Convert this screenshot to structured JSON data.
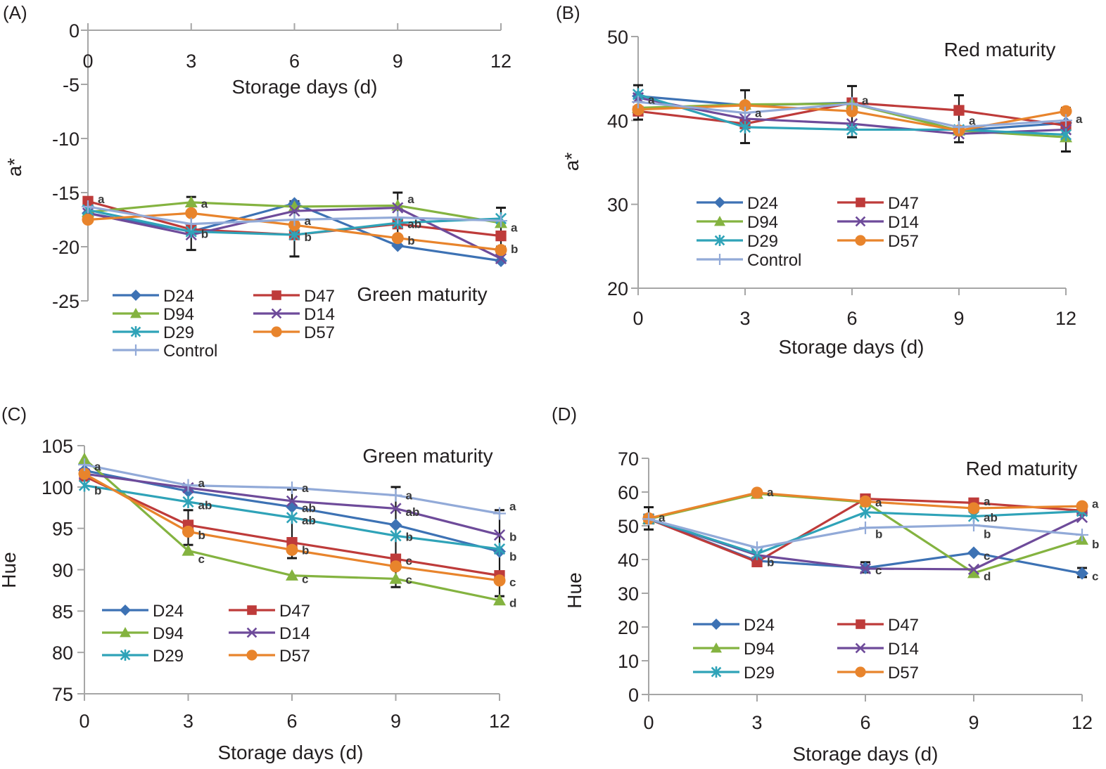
{
  "colors": {
    "D24": "#3d72b4",
    "D47": "#be3b3a",
    "D94": "#84b340",
    "D14": "#6e4b9a",
    "D29": "#2fa3b8",
    "D57": "#e8842c",
    "Control": "#92aad8",
    "axis": "#a6a6a6",
    "errorbar": "#1a1a1a"
  },
  "chart_data": [
    {
      "panel": "(A)",
      "type": "line",
      "annotation": "Green maturity",
      "xlabel": "Storage days (d)",
      "ylabel": "a*",
      "x": [
        0,
        3,
        6,
        9,
        12
      ],
      "xticks": [
        "0",
        "3",
        "6",
        "9",
        "12"
      ],
      "yticks": [
        "0",
        "-5",
        "-10",
        "-15",
        "-20",
        "-25"
      ],
      "ylim": [
        -25,
        0
      ],
      "x_axis_position": "top",
      "legend_position": "bottom-left",
      "series": [
        {
          "name": "D24",
          "marker": "diamond",
          "values": [
            -16.9,
            -18.6,
            -16.0,
            -19.9,
            -21.3
          ]
        },
        {
          "name": "D47",
          "marker": "square",
          "values": [
            -15.8,
            -18.4,
            -18.9,
            -17.9,
            -19.0
          ]
        },
        {
          "name": "D94",
          "marker": "triangle",
          "values": [
            -16.8,
            -15.9,
            -16.3,
            -16.2,
            -17.8
          ]
        },
        {
          "name": "D14",
          "marker": "x",
          "values": [
            -16.9,
            -18.9,
            -16.7,
            -16.4,
            -21.1
          ]
        },
        {
          "name": "D29",
          "marker": "asterisk",
          "values": [
            -16.6,
            -18.6,
            -18.9,
            -17.8,
            -17.4
          ]
        },
        {
          "name": "D57",
          "marker": "circle",
          "values": [
            -17.5,
            -16.9,
            -18.0,
            -19.2,
            -20.3
          ]
        },
        {
          "name": "Control",
          "marker": "plus",
          "values": [
            -16.3,
            -17.9,
            -17.5,
            -17.3,
            -17.6
          ]
        }
      ],
      "error_bars": [
        {
          "x": 3,
          "low": -20.3,
          "high": -15.4
        },
        {
          "x": 6,
          "low": -20.9,
          "high": -15.8
        },
        {
          "x": 9,
          "low": -19.0,
          "high": -15.0
        },
        {
          "x": 12,
          "low": -20.0,
          "high": -16.4
        }
      ],
      "significance_labels": [
        {
          "x": 0,
          "y": -15.6,
          "text": "a"
        },
        {
          "x": 3,
          "y": -16.0,
          "text": "a"
        },
        {
          "x": 3,
          "y": -18.8,
          "text": "b"
        },
        {
          "x": 6,
          "y": -17.6,
          "text": "a"
        },
        {
          "x": 6,
          "y": -19.1,
          "text": "b"
        },
        {
          "x": 9,
          "y": -15.6,
          "text": "a"
        },
        {
          "x": 9,
          "y": -17.9,
          "text": "ab"
        },
        {
          "x": 9,
          "y": -19.4,
          "text": "b"
        },
        {
          "x": 12,
          "y": -18.2,
          "text": "a"
        },
        {
          "x": 12,
          "y": -20.2,
          "text": "b"
        }
      ]
    },
    {
      "panel": "(B)",
      "type": "line",
      "annotation": "Red maturity",
      "xlabel": "Storage days (d)",
      "ylabel": "a*",
      "x": [
        0,
        3,
        6,
        9,
        12
      ],
      "xticks": [
        "0",
        "3",
        "6",
        "9",
        "12"
      ],
      "yticks": [
        "20",
        "30",
        "40",
        "50"
      ],
      "ylim": [
        20,
        50
      ],
      "x_axis_position": "bottom",
      "legend_position": "bottom-left",
      "series": [
        {
          "name": "D24",
          "marker": "diamond",
          "values": [
            42.9,
            41.8,
            42.1,
            38.8,
            39.7
          ]
        },
        {
          "name": "D47",
          "marker": "square",
          "values": [
            41.1,
            39.6,
            42.1,
            41.2,
            39.4
          ]
        },
        {
          "name": "D94",
          "marker": "triangle",
          "values": [
            41.5,
            41.9,
            42.0,
            38.8,
            38.0
          ]
        },
        {
          "name": "D14",
          "marker": "x",
          "values": [
            42.7,
            40.2,
            39.6,
            38.4,
            38.9
          ]
        },
        {
          "name": "D29",
          "marker": "asterisk",
          "values": [
            43.1,
            39.2,
            38.9,
            38.9,
            38.3
          ]
        },
        {
          "name": "D57",
          "marker": "circle",
          "values": [
            41.3,
            41.8,
            41.1,
            38.8,
            41.1
          ]
        },
        {
          "name": "Control",
          "marker": "plus",
          "values": [
            42.2,
            40.9,
            42.0,
            39.2,
            40.0
          ]
        }
      ],
      "error_bars": [
        {
          "x": 0,
          "low": 40.1,
          "high": 44.2
        },
        {
          "x": 3,
          "low": 37.3,
          "high": 43.6
        },
        {
          "x": 6,
          "low": 38.0,
          "high": 44.1
        },
        {
          "x": 9,
          "low": 37.4,
          "high": 43.0
        },
        {
          "x": 12,
          "low": 36.3,
          "high": 41.5
        }
      ],
      "significance_labels": [
        {
          "x": 0,
          "y": 42.5,
          "text": "a"
        },
        {
          "x": 3,
          "y": 40.9,
          "text": "a"
        },
        {
          "x": 6,
          "y": 42.4,
          "text": "a"
        },
        {
          "x": 9,
          "y": 40.0,
          "text": "a"
        },
        {
          "x": 12,
          "y": 40.2,
          "text": "a"
        }
      ]
    },
    {
      "panel": "(C)",
      "type": "line",
      "annotation": "Green maturity",
      "xlabel": "Storage days (d)",
      "ylabel": "Hue",
      "x": [
        0,
        3,
        6,
        9,
        12
      ],
      "xticks": [
        "0",
        "3",
        "6",
        "9",
        "12"
      ],
      "yticks": [
        "75",
        "80",
        "85",
        "90",
        "95",
        "100",
        "105"
      ],
      "ylim": [
        75,
        105
      ],
      "x_axis_position": "bottom",
      "legend_position": "bottom-left",
      "series": [
        {
          "name": "D24",
          "marker": "diamond",
          "values": [
            102.0,
            99.5,
            97.6,
            95.4,
            92.2
          ]
        },
        {
          "name": "D47",
          "marker": "square",
          "values": [
            101.3,
            95.4,
            93.3,
            91.3,
            89.3
          ]
        },
        {
          "name": "D94",
          "marker": "triangle",
          "values": [
            103.4,
            92.3,
            89.3,
            88.9,
            86.3
          ]
        },
        {
          "name": "D14",
          "marker": "x",
          "values": [
            101.6,
            99.9,
            98.3,
            97.4,
            94.2
          ]
        },
        {
          "name": "D29",
          "marker": "asterisk",
          "values": [
            100.2,
            98.2,
            96.3,
            94.1,
            92.5
          ]
        },
        {
          "name": "D57",
          "marker": "circle",
          "values": [
            101.6,
            94.6,
            92.4,
            90.4,
            88.7
          ]
        },
        {
          "name": "Control",
          "marker": "plus",
          "values": [
            102.7,
            100.2,
            99.9,
            99.0,
            96.8
          ]
        }
      ],
      "error_bars": [
        {
          "x": 3,
          "low": 93.0,
          "high": 97.2
        },
        {
          "x": 6,
          "low": 91.4,
          "high": 99.7
        },
        {
          "x": 9,
          "low": 87.9,
          "high": 100.0
        },
        {
          "x": 12,
          "low": 86.8,
          "high": 97.2
        }
      ],
      "significance_labels": [
        {
          "x": 0,
          "y": 102.5,
          "text": "a"
        },
        {
          "x": 0,
          "y": 99.6,
          "text": "b"
        },
        {
          "x": 3,
          "y": 100.5,
          "text": "a"
        },
        {
          "x": 3,
          "y": 97.8,
          "text": "ab"
        },
        {
          "x": 3,
          "y": 94.2,
          "text": "b"
        },
        {
          "x": 3,
          "y": 91.3,
          "text": "c"
        },
        {
          "x": 6,
          "y": 99.9,
          "text": "a"
        },
        {
          "x": 6,
          "y": 97.5,
          "text": "ab"
        },
        {
          "x": 6,
          "y": 96.0,
          "text": "ab"
        },
        {
          "x": 6,
          "y": 92.4,
          "text": "b"
        },
        {
          "x": 6,
          "y": 88.9,
          "text": "c"
        },
        {
          "x": 9,
          "y": 99.0,
          "text": "a"
        },
        {
          "x": 9,
          "y": 97.0,
          "text": "ab"
        },
        {
          "x": 9,
          "y": 94.0,
          "text": "b"
        },
        {
          "x": 9,
          "y": 91.1,
          "text": "c"
        },
        {
          "x": 9,
          "y": 88.8,
          "text": "c"
        },
        {
          "x": 12,
          "y": 97.7,
          "text": "a"
        },
        {
          "x": 12,
          "y": 94.0,
          "text": "b"
        },
        {
          "x": 12,
          "y": 91.6,
          "text": "b"
        },
        {
          "x": 12,
          "y": 88.5,
          "text": "c"
        },
        {
          "x": 12,
          "y": 86.0,
          "text": "d"
        }
      ]
    },
    {
      "panel": "(D)",
      "type": "line",
      "annotation": "Red maturity",
      "xlabel": "Storage days (d)",
      "ylabel": "Hue",
      "x": [
        0,
        3,
        6,
        9,
        12
      ],
      "xticks": [
        "0",
        "3",
        "6",
        "9",
        "12"
      ],
      "yticks": [
        "0",
        "10",
        "20",
        "30",
        "40",
        "50",
        "60",
        "70"
      ],
      "ylim": [
        0,
        70
      ],
      "x_axis_position": "bottom",
      "legend_position": "bottom-left",
      "series": [
        {
          "name": "D24",
          "marker": "diamond",
          "values": [
            52.0,
            39.6,
            37.5,
            42.0,
            35.9
          ]
        },
        {
          "name": "D47",
          "marker": "square",
          "values": [
            52.0,
            39.3,
            58.0,
            56.8,
            54.5
          ]
        },
        {
          "name": "D94",
          "marker": "triangle",
          "values": [
            52.0,
            59.5,
            57.0,
            36.0,
            45.9
          ]
        },
        {
          "name": "D14",
          "marker": "x",
          "values": [
            52.0,
            41.3,
            37.3,
            37.1,
            52.5
          ]
        },
        {
          "name": "D29",
          "marker": "asterisk",
          "values": [
            52.0,
            41.7,
            54.0,
            52.8,
            54.3
          ]
        },
        {
          "name": "D57",
          "marker": "circle",
          "values": [
            52.2,
            59.8,
            57.2,
            55.2,
            55.8
          ]
        },
        {
          "name": "Control",
          "marker": "plus",
          "values": [
            52.0,
            43.5,
            49.4,
            50.2,
            47.3
          ]
        }
      ],
      "error_bars": [
        {
          "x": 0,
          "low": 48.9,
          "high": 55.5
        },
        {
          "x": 6,
          "low": 36.2,
          "high": 39.2
        },
        {
          "x": 12,
          "low": 34.8,
          "high": 37.5
        }
      ],
      "significance_labels": [
        {
          "x": 0,
          "y": 52.5,
          "text": "a"
        },
        {
          "x": 3,
          "y": 60.0,
          "text": "a"
        },
        {
          "x": 3,
          "y": 39.3,
          "text": "b"
        },
        {
          "x": 6,
          "y": 57.0,
          "text": "a"
        },
        {
          "x": 6,
          "y": 47.6,
          "text": "b"
        },
        {
          "x": 6,
          "y": 36.9,
          "text": "c"
        },
        {
          "x": 9,
          "y": 57.3,
          "text": "a"
        },
        {
          "x": 9,
          "y": 52.5,
          "text": "ab"
        },
        {
          "x": 9,
          "y": 47.6,
          "text": "b"
        },
        {
          "x": 9,
          "y": 41.1,
          "text": "c"
        },
        {
          "x": 9,
          "y": 35.1,
          "text": "d"
        },
        {
          "x": 12,
          "y": 56.6,
          "text": "a"
        },
        {
          "x": 12,
          "y": 44.6,
          "text": "b"
        },
        {
          "x": 12,
          "y": 35.1,
          "text": "c"
        }
      ]
    }
  ],
  "legends": {
    "A": [
      "D24",
      "D47",
      "D94",
      "D14",
      "D29",
      "D57",
      "Control"
    ],
    "B": [
      "D24",
      "D47",
      "D94",
      "D14",
      "D29",
      "D57",
      "Control"
    ],
    "C": [
      "D24",
      "D47",
      "D94",
      "D14",
      "D29",
      "D57"
    ],
    "D": [
      "D24",
      "D47",
      "D94",
      "D14",
      "D29",
      "D57"
    ]
  }
}
